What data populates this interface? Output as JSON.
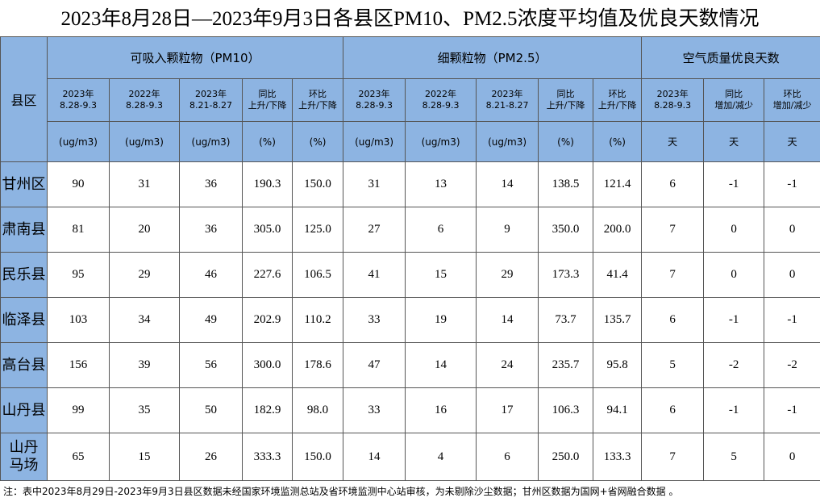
{
  "title": "2023年8月28日—2023年9月3日各县区PM10、PM2.5浓度平均值及优良天数情况",
  "table": {
    "corner": "县区",
    "groups": [
      "可吸入颗粒物（PM10）",
      "细颗粒物（PM2.5）",
      "空气质量优良天数"
    ],
    "sub": [
      [
        "2023年",
        "8.28-9.3"
      ],
      [
        "2022年",
        "8.28-9.3"
      ],
      [
        "2023年",
        "8.21-8.27"
      ],
      [
        "同比",
        "上升/下降"
      ],
      [
        "环比",
        "上升/下降"
      ],
      [
        "2023年",
        "8.28-9.3"
      ],
      [
        "2022年",
        "8.28-9.3"
      ],
      [
        "2023年",
        "8.21-8.27"
      ],
      [
        "同比",
        "上升/下降"
      ],
      [
        "环比",
        "上升/下降"
      ],
      [
        "2023年",
        "8.28-9.3"
      ],
      [
        "同比",
        "增加/减少"
      ],
      [
        "环比",
        "增加/减少"
      ]
    ],
    "units": [
      "(ug/m3)",
      "(ug/m3)",
      "(ug/m3)",
      "(%)",
      "(%)",
      "(ug/m3)",
      "(ug/m3)",
      "(ug/m3)",
      "(%)",
      "(%)",
      "天",
      "天",
      "天"
    ],
    "rows": [
      [
        [
          "甘州区"
        ],
        "90",
        "31",
        "36",
        "190.3",
        "150.0",
        "31",
        "13",
        "14",
        "138.5",
        "121.4",
        "6",
        "-1",
        "-1"
      ],
      [
        [
          "肃南县"
        ],
        "81",
        "20",
        "36",
        "305.0",
        "125.0",
        "27",
        "6",
        "9",
        "350.0",
        "200.0",
        "7",
        "0",
        "0"
      ],
      [
        [
          "民乐县"
        ],
        "95",
        "29",
        "46",
        "227.6",
        "106.5",
        "41",
        "15",
        "29",
        "173.3",
        "41.4",
        "7",
        "0",
        "0"
      ],
      [
        [
          "临泽县"
        ],
        "103",
        "34",
        "49",
        "202.9",
        "110.2",
        "33",
        "19",
        "14",
        "73.7",
        "135.7",
        "6",
        "-1",
        "-1"
      ],
      [
        [
          "高台县"
        ],
        "156",
        "39",
        "56",
        "300.0",
        "178.6",
        "47",
        "14",
        "24",
        "235.7",
        "95.8",
        "5",
        "-2",
        "-2"
      ],
      [
        [
          "山丹县"
        ],
        "99",
        "35",
        "50",
        "182.9",
        "98.0",
        "33",
        "16",
        "17",
        "106.3",
        "94.1",
        "6",
        "-1",
        "-1"
      ],
      [
        [
          "山丹",
          "马场"
        ],
        "65",
        "15",
        "26",
        "333.3",
        "150.0",
        "14",
        "4",
        "6",
        "250.0",
        "133.3",
        "7",
        "5",
        "0"
      ]
    ]
  },
  "note": "注：表中2023年8月29日-2023年9月3日县区数据未经国家环境监测总站及省环境监测中心站审核，为未剔除沙尘数据；甘州区数据为国网+省网融合数据 。"
}
